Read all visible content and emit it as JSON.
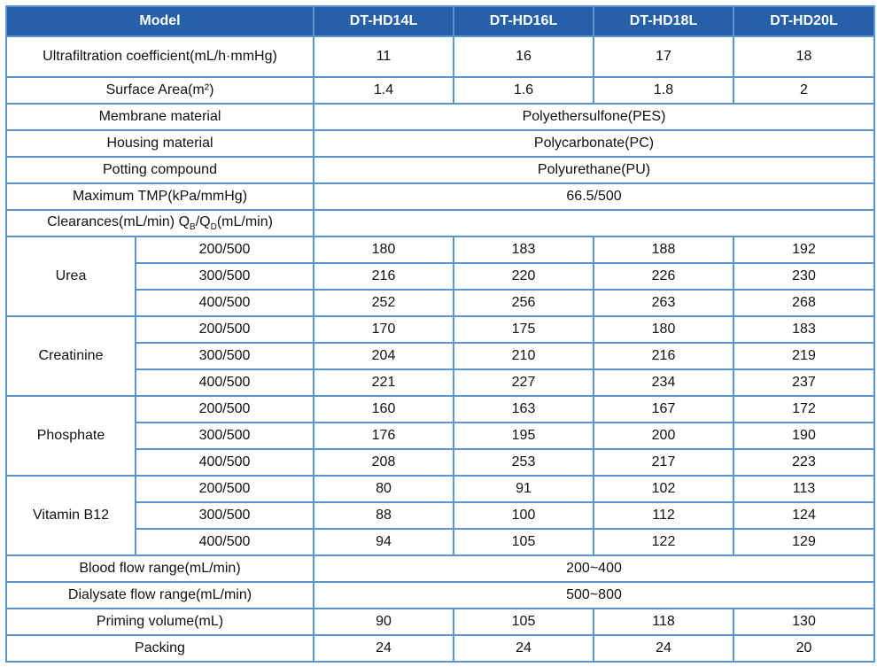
{
  "header": {
    "model_label": "Model",
    "models": [
      "DT-HD14L",
      "DT-HD16L",
      "DT-HD18L",
      "DT-HD20L"
    ]
  },
  "uf": {
    "label": "Ultrafiltration coefficient(mL/h·mmHg)",
    "values": [
      "11",
      "16",
      "17",
      "18"
    ]
  },
  "surface": {
    "label": "Surface Area(m²)",
    "values": [
      "1.4",
      "1.6",
      "1.8",
      "2"
    ]
  },
  "membrane": {
    "label": "Membrane material",
    "value": "Polyethersulfone(PES)"
  },
  "housing": {
    "label": "Housing material",
    "value": "Polycarbonate(PC)"
  },
  "potting": {
    "label": "Potting compound",
    "value": "Polyurethane(PU)"
  },
  "tmp": {
    "label": "Maximum TMP(kPa/mmHg)",
    "value": "66.5/500"
  },
  "clearances": {
    "label_a": "Clearances(mL/min) Q",
    "sub_b": "B",
    "slash": "/Q",
    "sub_d": "D",
    "label_e": "(mL/min)"
  },
  "groups": [
    {
      "name": "Urea",
      "rows": [
        {
          "q": "200/500",
          "v": [
            "180",
            "183",
            "188",
            "192"
          ]
        },
        {
          "q": "300/500",
          "v": [
            "216",
            "220",
            "226",
            "230"
          ]
        },
        {
          "q": "400/500",
          "v": [
            "252",
            "256",
            "263",
            "268"
          ]
        }
      ]
    },
    {
      "name": "Creatinine",
      "rows": [
        {
          "q": "200/500",
          "v": [
            "170",
            "175",
            "180",
            "183"
          ]
        },
        {
          "q": "300/500",
          "v": [
            "204",
            "210",
            "216",
            "219"
          ]
        },
        {
          "q": "400/500",
          "v": [
            "221",
            "227",
            "234",
            "237"
          ]
        }
      ]
    },
    {
      "name": "Phosphate",
      "rows": [
        {
          "q": "200/500",
          "v": [
            "160",
            "163",
            "167",
            "172"
          ]
        },
        {
          "q": "300/500",
          "v": [
            "176",
            "195",
            "200",
            "190"
          ]
        },
        {
          "q": "400/500",
          "v": [
            "208",
            "253",
            "217",
            "223"
          ]
        }
      ]
    },
    {
      "name": "Vitamin B12",
      "rows": [
        {
          "q": "200/500",
          "v": [
            "80",
            "91",
            "102",
            "113"
          ]
        },
        {
          "q": "300/500",
          "v": [
            "88",
            "100",
            "112",
            "124"
          ]
        },
        {
          "q": "400/500",
          "v": [
            "94",
            "105",
            "122",
            "129"
          ]
        }
      ]
    }
  ],
  "blood": {
    "label": "Blood flow range(mL/min)",
    "value": "200~400"
  },
  "dialysate": {
    "label": "Dialysate flow range(mL/min)",
    "value": "500~800"
  },
  "priming": {
    "label": "Priming volume(mL)",
    "values": [
      "90",
      "105",
      "118",
      "130"
    ]
  },
  "packing": {
    "label": "Packing",
    "values": [
      "24",
      "24",
      "24",
      "20"
    ]
  },
  "colors": {
    "header_bg": "#2560a8",
    "border": "#5b94cf"
  }
}
